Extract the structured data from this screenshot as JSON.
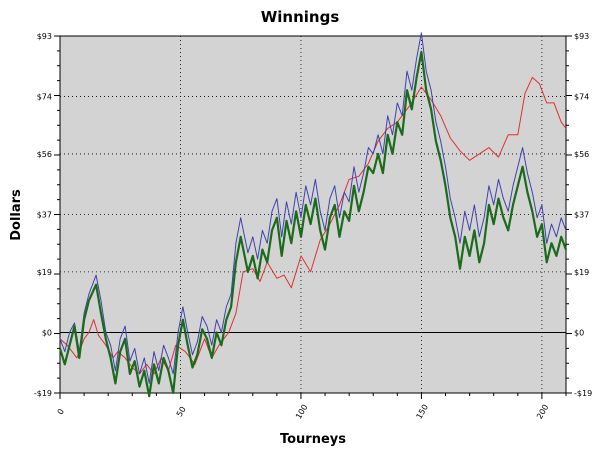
{
  "chart_data": {
    "type": "line",
    "title": "Winnings",
    "xlabel": "Tourneys",
    "ylabel": "Dollars",
    "xlim": [
      0,
      210
    ],
    "ylim": [
      -19,
      93
    ],
    "x_ticks": [
      0,
      50,
      100,
      150,
      200
    ],
    "x_tick_labels": [
      "0",
      "50",
      "100",
      "150",
      "200"
    ],
    "y_ticks": [
      -19,
      0,
      19,
      37,
      56,
      74,
      93
    ],
    "y_tick_labels": [
      "-$19",
      "$0",
      "$19",
      "$37",
      "$56",
      "$74",
      "$93"
    ],
    "grid": true,
    "colors": {
      "background": "#d3d3d3",
      "zero_line": "#000000"
    },
    "series": [
      {
        "color": "#e03030",
        "x": [
          0,
          3,
          7,
          10,
          12,
          14,
          16,
          19,
          22,
          24,
          27,
          30,
          33,
          36,
          39,
          42,
          45,
          48,
          52,
          56,
          60,
          63,
          66,
          70,
          73,
          76,
          80,
          83,
          86,
          90,
          93,
          96,
          100,
          104,
          108,
          112,
          116,
          120,
          124,
          128,
          132,
          136,
          140,
          145,
          150,
          154,
          158,
          162,
          166,
          170,
          174,
          178,
          182,
          186,
          190,
          193,
          196,
          199,
          202,
          205,
          208,
          210
        ],
        "y": [
          -2,
          -4,
          -8,
          -2,
          0,
          4,
          -1,
          -4,
          -8,
          -6,
          -8,
          -11,
          -13,
          -10,
          -13,
          -8,
          -12,
          -4,
          -6,
          -10,
          -2,
          -8,
          -4,
          0,
          6,
          19,
          20,
          16,
          22,
          17,
          18,
          14,
          24,
          19,
          29,
          34,
          40,
          48,
          49,
          53,
          60,
          64,
          66,
          71,
          77,
          73,
          68,
          61,
          57,
          54,
          56,
          58,
          55,
          62,
          62,
          75,
          80,
          78,
          72,
          72,
          66,
          64
        ]
      },
      {
        "color": "#4040b0",
        "x": [
          0,
          2,
          4,
          6,
          8,
          10,
          12,
          15,
          17,
          19,
          21,
          23,
          25,
          27,
          29,
          31,
          33,
          35,
          37,
          39,
          41,
          43,
          45,
          47,
          49,
          51,
          53,
          55,
          57,
          59,
          61,
          63,
          65,
          67,
          69,
          71,
          73,
          75,
          78,
          80,
          82,
          84,
          86,
          88,
          90,
          92,
          94,
          96,
          98,
          100,
          102,
          104,
          106,
          108,
          110,
          112,
          114,
          116,
          118,
          120,
          122,
          124,
          126,
          128,
          130,
          132,
          134,
          136,
          138,
          140,
          142,
          144,
          146,
          148,
          150,
          152,
          154,
          156,
          158,
          160,
          162,
          164,
          166,
          168,
          170,
          172,
          174,
          176,
          178,
          180,
          182,
          184,
          186,
          188,
          190,
          192,
          194,
          196,
          198,
          200,
          202,
          204,
          206,
          208,
          210
        ],
        "y": [
          -2,
          -6,
          0,
          3,
          -6,
          6,
          12,
          18,
          10,
          0,
          -4,
          -12,
          -2,
          2,
          -9,
          -5,
          -13,
          -8,
          -16,
          -6,
          -12,
          -4,
          -8,
          -13,
          0,
          8,
          0,
          -7,
          -3,
          5,
          2,
          -4,
          4,
          0,
          8,
          12,
          28,
          36,
          25,
          30,
          23,
          32,
          28,
          38,
          42,
          30,
          41,
          34,
          44,
          36,
          46,
          40,
          48,
          38,
          32,
          42,
          46,
          36,
          44,
          41,
          52,
          44,
          50,
          58,
          56,
          62,
          56,
          68,
          62,
          72,
          68,
          82,
          76,
          86,
          94,
          82,
          76,
          66,
          60,
          52,
          42,
          36,
          28,
          38,
          32,
          40,
          30,
          36,
          46,
          40,
          48,
          42,
          38,
          46,
          52,
          58,
          50,
          44,
          36,
          40,
          28,
          34,
          30,
          36,
          32
        ]
      },
      {
        "color": "#1a6b1a",
        "x": [
          0,
          2,
          4,
          6,
          8,
          10,
          12,
          15,
          17,
          19,
          21,
          23,
          25,
          27,
          29,
          31,
          33,
          35,
          37,
          39,
          41,
          43,
          45,
          47,
          49,
          51,
          53,
          55,
          57,
          59,
          61,
          63,
          65,
          67,
          69,
          71,
          73,
          75,
          78,
          80,
          82,
          84,
          86,
          88,
          90,
          92,
          94,
          96,
          98,
          100,
          102,
          104,
          106,
          108,
          110,
          112,
          114,
          116,
          118,
          120,
          122,
          124,
          126,
          128,
          130,
          132,
          134,
          136,
          138,
          140,
          142,
          144,
          146,
          148,
          150,
          152,
          154,
          156,
          158,
          160,
          162,
          164,
          166,
          168,
          170,
          172,
          174,
          176,
          178,
          180,
          182,
          184,
          186,
          188,
          190,
          192,
          194,
          196,
          198,
          200,
          202,
          204,
          206,
          208,
          210
        ],
        "y": [
          -5,
          -10,
          -4,
          2,
          -8,
          4,
          10,
          15,
          6,
          -2,
          -8,
          -16,
          -6,
          -2,
          -13,
          -9,
          -17,
          -12,
          -20,
          -10,
          -16,
          -8,
          -12,
          -19,
          -4,
          4,
          -4,
          -11,
          -7,
          1,
          -2,
          -8,
          0,
          -4,
          4,
          8,
          22,
          30,
          19,
          24,
          17,
          26,
          22,
          32,
          36,
          24,
          35,
          28,
          38,
          30,
          40,
          34,
          42,
          32,
          26,
          36,
          40,
          30,
          38,
          35,
          46,
          38,
          44,
          52,
          50,
          56,
          50,
          62,
          56,
          66,
          62,
          76,
          70,
          80,
          88,
          76,
          70,
          60,
          54,
          46,
          36,
          30,
          20,
          30,
          24,
          32,
          22,
          28,
          40,
          34,
          42,
          36,
          32,
          40,
          46,
          52,
          44,
          38,
          30,
          34,
          22,
          28,
          24,
          30,
          26
        ]
      }
    ]
  }
}
